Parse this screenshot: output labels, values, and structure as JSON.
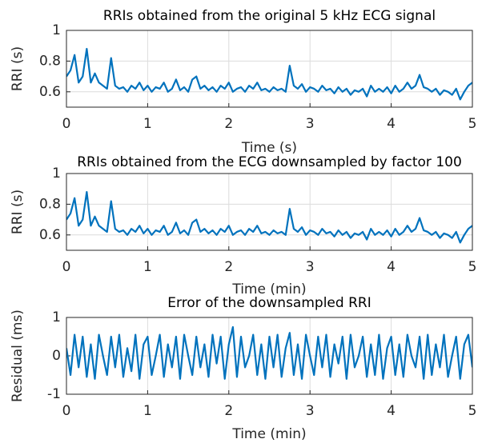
{
  "chart_data": [
    {
      "type": "line",
      "title": "RRIs obtained from the original 5 kHz ECG signal",
      "xlabel": "Time (s)",
      "ylabel": "RRI (s)",
      "color": "#0072bd",
      "grid": true,
      "xlim": [
        0,
        5
      ],
      "xticks": [
        0,
        1,
        2,
        3,
        4,
        5
      ],
      "ylim": [
        0.5,
        1
      ],
      "yticks": [
        0.6,
        0.8,
        1
      ],
      "x": [
        0,
        0.05,
        0.1,
        0.15,
        0.2,
        0.25,
        0.3,
        0.35,
        0.4,
        0.45,
        0.5,
        0.55,
        0.6,
        0.65,
        0.7,
        0.75,
        0.8,
        0.85,
        0.9,
        0.95,
        1,
        1.05,
        1.1,
        1.15,
        1.2,
        1.25,
        1.3,
        1.35,
        1.4,
        1.45,
        1.5,
        1.55,
        1.6,
        1.65,
        1.7,
        1.75,
        1.8,
        1.85,
        1.9,
        1.95,
        2,
        2.05,
        2.1,
        2.15,
        2.2,
        2.25,
        2.3,
        2.35,
        2.4,
        2.45,
        2.5,
        2.55,
        2.6,
        2.65,
        2.7,
        2.75,
        2.8,
        2.85,
        2.9,
        2.95,
        3,
        3.05,
        3.1,
        3.15,
        3.2,
        3.25,
        3.3,
        3.35,
        3.4,
        3.45,
        3.5,
        3.55,
        3.6,
        3.65,
        3.7,
        3.75,
        3.8,
        3.85,
        3.9,
        3.95,
        4,
        4.05,
        4.1,
        4.15,
        4.2,
        4.25,
        4.3,
        4.35,
        4.4,
        4.45,
        4.5,
        4.55,
        4.6,
        4.65,
        4.7,
        4.75,
        4.8,
        4.85,
        4.9,
        4.95,
        5
      ],
      "values": [
        0.7,
        0.74,
        0.84,
        0.66,
        0.7,
        0.88,
        0.66,
        0.72,
        0.66,
        0.64,
        0.62,
        0.82,
        0.64,
        0.62,
        0.63,
        0.6,
        0.64,
        0.62,
        0.66,
        0.61,
        0.64,
        0.6,
        0.63,
        0.62,
        0.66,
        0.6,
        0.62,
        0.68,
        0.61,
        0.63,
        0.6,
        0.68,
        0.7,
        0.62,
        0.64,
        0.61,
        0.63,
        0.6,
        0.64,
        0.62,
        0.66,
        0.6,
        0.62,
        0.63,
        0.6,
        0.64,
        0.62,
        0.66,
        0.61,
        0.62,
        0.6,
        0.63,
        0.61,
        0.62,
        0.6,
        0.77,
        0.64,
        0.62,
        0.65,
        0.6,
        0.63,
        0.62,
        0.6,
        0.64,
        0.61,
        0.62,
        0.59,
        0.63,
        0.6,
        0.62,
        0.58,
        0.61,
        0.6,
        0.62,
        0.57,
        0.64,
        0.6,
        0.62,
        0.6,
        0.63,
        0.59,
        0.64,
        0.6,
        0.62,
        0.66,
        0.62,
        0.64,
        0.71,
        0.63,
        0.62,
        0.6,
        0.62,
        0.58,
        0.61,
        0.6,
        0.58,
        0.62,
        0.55,
        0.6,
        0.64,
        0.66
      ]
    },
    {
      "type": "line",
      "title": "RRIs obtained from the ECG downsampled by factor 100",
      "xlabel": "Time (min)",
      "ylabel": "RRI (s)",
      "color": "#0072bd",
      "grid": true,
      "xlim": [
        0,
        5
      ],
      "xticks": [
        0,
        1,
        2,
        3,
        4,
        5
      ],
      "ylim": [
        0.5,
        1
      ],
      "yticks": [
        0.6,
        0.8,
        1
      ],
      "x": [
        0,
        0.05,
        0.1,
        0.15,
        0.2,
        0.25,
        0.3,
        0.35,
        0.4,
        0.45,
        0.5,
        0.55,
        0.6,
        0.65,
        0.7,
        0.75,
        0.8,
        0.85,
        0.9,
        0.95,
        1,
        1.05,
        1.1,
        1.15,
        1.2,
        1.25,
        1.3,
        1.35,
        1.4,
        1.45,
        1.5,
        1.55,
        1.6,
        1.65,
        1.7,
        1.75,
        1.8,
        1.85,
        1.9,
        1.95,
        2,
        2.05,
        2.1,
        2.15,
        2.2,
        2.25,
        2.3,
        2.35,
        2.4,
        2.45,
        2.5,
        2.55,
        2.6,
        2.65,
        2.7,
        2.75,
        2.8,
        2.85,
        2.9,
        2.95,
        3,
        3.05,
        3.1,
        3.15,
        3.2,
        3.25,
        3.3,
        3.35,
        3.4,
        3.45,
        3.5,
        3.55,
        3.6,
        3.65,
        3.7,
        3.75,
        3.8,
        3.85,
        3.9,
        3.95,
        4,
        4.05,
        4.1,
        4.15,
        4.2,
        4.25,
        4.3,
        4.35,
        4.4,
        4.45,
        4.5,
        4.55,
        4.6,
        4.65,
        4.7,
        4.75,
        4.8,
        4.85,
        4.9,
        4.95,
        5
      ],
      "values": [
        0.7,
        0.74,
        0.84,
        0.66,
        0.7,
        0.88,
        0.66,
        0.72,
        0.66,
        0.64,
        0.62,
        0.82,
        0.64,
        0.62,
        0.63,
        0.6,
        0.64,
        0.62,
        0.66,
        0.61,
        0.64,
        0.6,
        0.63,
        0.62,
        0.66,
        0.6,
        0.62,
        0.68,
        0.61,
        0.63,
        0.6,
        0.68,
        0.7,
        0.62,
        0.64,
        0.61,
        0.63,
        0.6,
        0.64,
        0.62,
        0.66,
        0.6,
        0.62,
        0.63,
        0.6,
        0.64,
        0.62,
        0.66,
        0.61,
        0.62,
        0.6,
        0.63,
        0.61,
        0.62,
        0.6,
        0.77,
        0.64,
        0.62,
        0.65,
        0.6,
        0.63,
        0.62,
        0.6,
        0.64,
        0.61,
        0.62,
        0.59,
        0.63,
        0.6,
        0.62,
        0.58,
        0.61,
        0.6,
        0.62,
        0.57,
        0.64,
        0.6,
        0.62,
        0.6,
        0.63,
        0.59,
        0.64,
        0.6,
        0.62,
        0.66,
        0.62,
        0.64,
        0.71,
        0.63,
        0.62,
        0.6,
        0.62,
        0.58,
        0.61,
        0.6,
        0.58,
        0.62,
        0.55,
        0.6,
        0.64,
        0.66
      ]
    },
    {
      "type": "line",
      "title": "Error of the downsampled RRI",
      "xlabel": "Time (min)",
      "ylabel": "Residual (ms)",
      "color": "#0072bd",
      "grid": true,
      "xlim": [
        0,
        5
      ],
      "xticks": [
        0,
        1,
        2,
        3,
        4,
        5
      ],
      "ylim": [
        -1,
        1
      ],
      "yticks": [
        -1,
        0,
        1
      ],
      "x": [
        0,
        0.05,
        0.1,
        0.15,
        0.2,
        0.25,
        0.3,
        0.35,
        0.4,
        0.45,
        0.5,
        0.55,
        0.6,
        0.65,
        0.7,
        0.75,
        0.8,
        0.85,
        0.9,
        0.95,
        1,
        1.05,
        1.1,
        1.15,
        1.2,
        1.25,
        1.3,
        1.35,
        1.4,
        1.45,
        1.5,
        1.55,
        1.6,
        1.65,
        1.7,
        1.75,
        1.8,
        1.85,
        1.9,
        1.95,
        2,
        2.05,
        2.1,
        2.15,
        2.2,
        2.25,
        2.3,
        2.35,
        2.4,
        2.45,
        2.5,
        2.55,
        2.6,
        2.65,
        2.7,
        2.75,
        2.8,
        2.85,
        2.9,
        2.95,
        3,
        3.05,
        3.1,
        3.15,
        3.2,
        3.25,
        3.3,
        3.35,
        3.4,
        3.45,
        3.5,
        3.55,
        3.6,
        3.65,
        3.7,
        3.75,
        3.8,
        3.85,
        3.9,
        3.95,
        4,
        4.05,
        4.1,
        4.15,
        4.2,
        4.25,
        4.3,
        4.35,
        4.4,
        4.45,
        4.5,
        4.55,
        4.6,
        4.65,
        4.7,
        4.75,
        4.8,
        4.85,
        4.9,
        4.95,
        5
      ],
      "values": [
        0.2,
        -0.5,
        0.55,
        -0.3,
        0.5,
        -0.55,
        0.3,
        -0.6,
        0.55,
        0,
        -0.5,
        0.5,
        -0.3,
        0.55,
        -0.55,
        0.2,
        -0.4,
        0.55,
        -0.6,
        0.3,
        0.5,
        -0.5,
        0,
        0.55,
        -0.55,
        0.3,
        -0.3,
        0.5,
        -0.6,
        0.55,
        0,
        -0.5,
        0.5,
        -0.3,
        0.3,
        -0.55,
        0.55,
        -0.2,
        0.5,
        -0.6,
        0.3,
        0.75,
        -0.55,
        0.5,
        -0.3,
        0,
        0.55,
        -0.5,
        0.3,
        -0.6,
        0.5,
        -0.3,
        0.55,
        -0.55,
        0.2,
        0.6,
        -0.5,
        0.3,
        -0.6,
        0.55,
        0,
        -0.5,
        0.5,
        -0.3,
        0.55,
        -0.55,
        0.3,
        -0.2,
        0.5,
        -0.6,
        0.55,
        -0.3,
        0,
        0.5,
        -0.55,
        0.3,
        -0.5,
        0.55,
        -0.6,
        0.2,
        0.5,
        -0.5,
        0.3,
        -0.55,
        0.55,
        0,
        -0.3,
        0.5,
        -0.6,
        0.55,
        -0.5,
        0.3,
        -0.3,
        0.55,
        -0.55,
        0,
        0.5,
        -0.6,
        0.3,
        0.55,
        -0.3
      ]
    }
  ]
}
